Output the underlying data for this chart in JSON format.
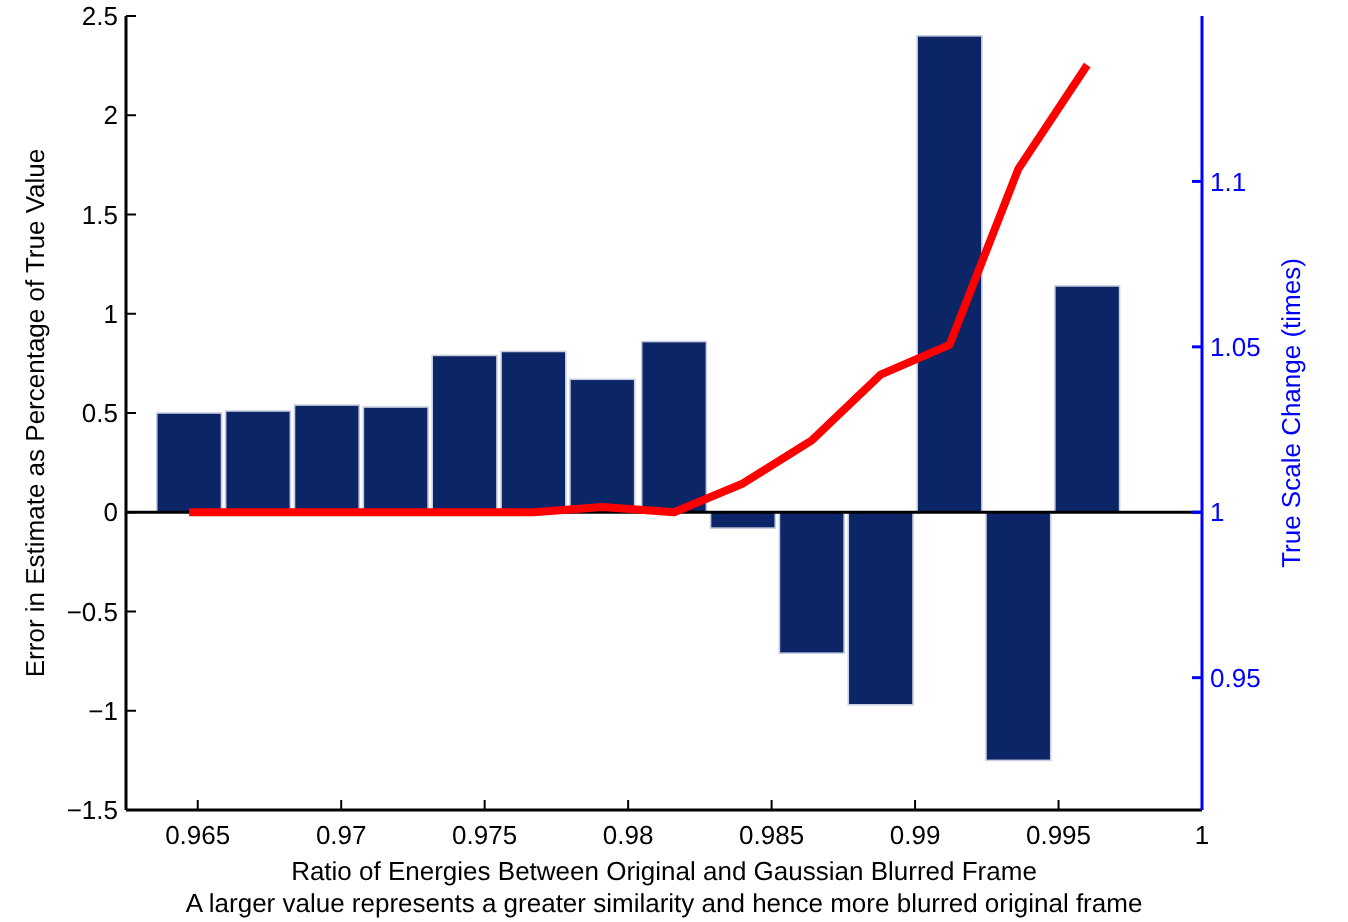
{
  "chart_data": {
    "type": "bar",
    "xlabel": "Ratio of Energies Between Original and Gaussian Blurred Frame\nA larger value represents a greater similarity and hence more blurred original frame",
    "ylabel": "Error in Estimate as Percentage of True Value",
    "y2label": "True Scale Change (times)",
    "x": [
      0.9647,
      0.9671,
      0.9695,
      0.9719,
      0.9743,
      0.9767,
      0.9791,
      0.9816,
      0.984,
      0.9864,
      0.9888,
      0.9912,
      0.9936,
      0.996
    ],
    "series": [
      {
        "color": "#0b2567",
        "values": [
          0.5,
          0.51,
          0.54,
          0.53,
          0.79,
          0.81,
          0.67,
          0.86,
          -0.08,
          -0.71,
          -0.97,
          2.4,
          -1.25,
          1.14
        ]
      },
      {
        "type": "line",
        "axis": "y2",
        "color": "#ff0000",
        "values": [
          1,
          1,
          1,
          1,
          1,
          1,
          1.0016,
          1,
          1.0087,
          1.0217,
          1.0416,
          1.0506,
          1.1038,
          1.1352
        ]
      }
    ],
    "xlim": [
      0.9625,
      1
    ],
    "xticks": [
      0.965,
      0.97,
      0.975,
      0.98,
      0.985,
      0.99,
      0.995,
      1
    ],
    "ylim": [
      -1.5,
      2.5
    ],
    "yticks": [
      -1.5,
      -1,
      -0.5,
      0,
      0.5,
      1,
      1.5,
      2,
      2.5
    ],
    "y2lim": [
      0.91,
      1.15
    ],
    "y2ticks": [
      0.95,
      1,
      1.05,
      1.1
    ],
    "ref_lines": [
      {
        "axis": "y",
        "value": 0,
        "color": "#000000"
      }
    ],
    "marker": "none",
    "line_style": "solid"
  }
}
